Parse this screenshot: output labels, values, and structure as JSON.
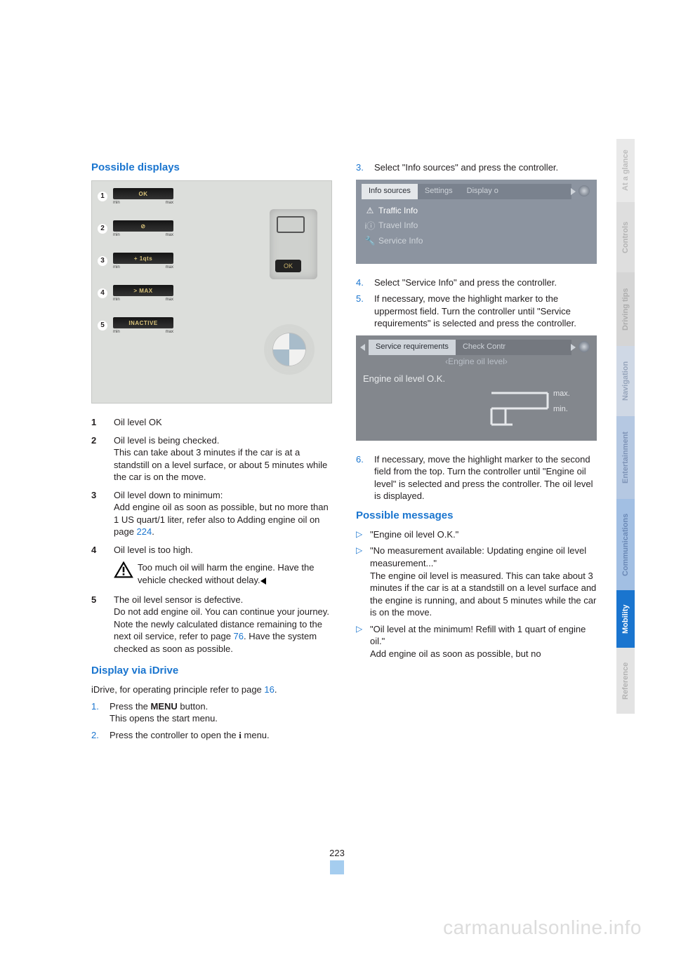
{
  "page_number": "223",
  "footer_watermark": "carmanualsonline.info",
  "side_tabs": [
    "At a glance",
    "Controls",
    "Driving tips",
    "Navigation",
    "Entertainment",
    "Communications",
    "Mobility",
    "Reference"
  ],
  "left": {
    "heading1": "Possible displays",
    "dash": {
      "rows": [
        {
          "n": "1",
          "label": "OK"
        },
        {
          "n": "2",
          "label": "⊘"
        },
        {
          "n": "3",
          "label": "+ 1qts"
        },
        {
          "n": "4",
          "label": "> MAX"
        },
        {
          "n": "5",
          "label": "INACTIVE"
        }
      ],
      "caps_min": "min",
      "caps_max": "max",
      "ok_badge": "OK"
    },
    "defs": [
      {
        "n": "1",
        "text": "Oil level OK"
      },
      {
        "n": "2",
        "text": "Oil level is being checked.\nThis can take about 3 minutes if the car is at a standstill on a level surface, or about 5 minutes while the car is on the move."
      },
      {
        "n": "3",
        "text": "Oil level down to minimum:\nAdd engine oil as soon as possible, but no more than 1 US quart/1 liter, refer also to Adding engine oil on page ",
        "link": "224",
        "after": "."
      },
      {
        "n": "4",
        "text": "Oil level is too high."
      }
    ],
    "warning": "Too much oil will harm the engine. Have the vehicle checked without delay.",
    "def5": {
      "n": "5",
      "text": "The oil level sensor is defective.\nDo not add engine oil. You can continue your journey. Note the newly calculated distance remaining to the next oil service, refer to page ",
      "link": "76",
      "after": ". Have the system checked as soon as possible."
    },
    "heading2": "Display via iDrive",
    "idrive_intro_a": "iDrive, for operating principle refer to page ",
    "idrive_intro_link": "16",
    "idrive_intro_b": ".",
    "steps": [
      {
        "n": "1.",
        "body_a": "Press the ",
        "menu": "MENU",
        "body_b": " button.\nThis opens the start menu."
      },
      {
        "n": "2.",
        "body_a": "Press the controller to open the ",
        "glyph": "i",
        "body_b": " menu."
      }
    ]
  },
  "right": {
    "step3": {
      "n": "3.",
      "body": "Select \"Info sources\" and press the controller."
    },
    "screen1": {
      "tabs": [
        "Info sources",
        "Settings",
        "Display o"
      ],
      "active_tab": 0,
      "rows": [
        {
          "icon": "⚠",
          "label": "Traffic Info",
          "on": true
        },
        {
          "icon": "iⓘ",
          "label": "Travel Info",
          "on": false
        },
        {
          "icon": "🔧",
          "label": "Service Info",
          "on": false
        }
      ]
    },
    "step4": {
      "n": "4.",
      "body": "Select \"Service Info\" and press the controller."
    },
    "step5": {
      "n": "5.",
      "body": "If necessary, move the highlight marker to the uppermost field. Turn the controller until \"Service requirements\" is selected and press the controller."
    },
    "screen2": {
      "tabs": [
        "Service requirements",
        "Check Contr"
      ],
      "active_tab": 0,
      "subtitle": "‹Engine oil level›",
      "status": "Engine oil level O.K.",
      "max": "max.",
      "min": "min."
    },
    "step6": {
      "n": "6.",
      "body": "If necessary, move the highlight marker to the second field from the top. Turn the controller until \"Engine oil level\" is selected and press the controller. The oil level is displayed."
    },
    "heading": "Possible messages",
    "bullets": [
      {
        "text": "\"Engine oil level O.K.\""
      },
      {
        "text": "\"No measurement available: Updating engine oil level measurement...\"\nThe engine oil level is measured. This can take about 3 minutes if the car is at a standstill on a level surface and the engine is running, and about 5 minutes while the car is on the move."
      },
      {
        "text": "\"Oil level at the minimum! Refill with 1 quart of engine oil.\"\nAdd engine oil as soon as possible, but no"
      }
    ]
  }
}
